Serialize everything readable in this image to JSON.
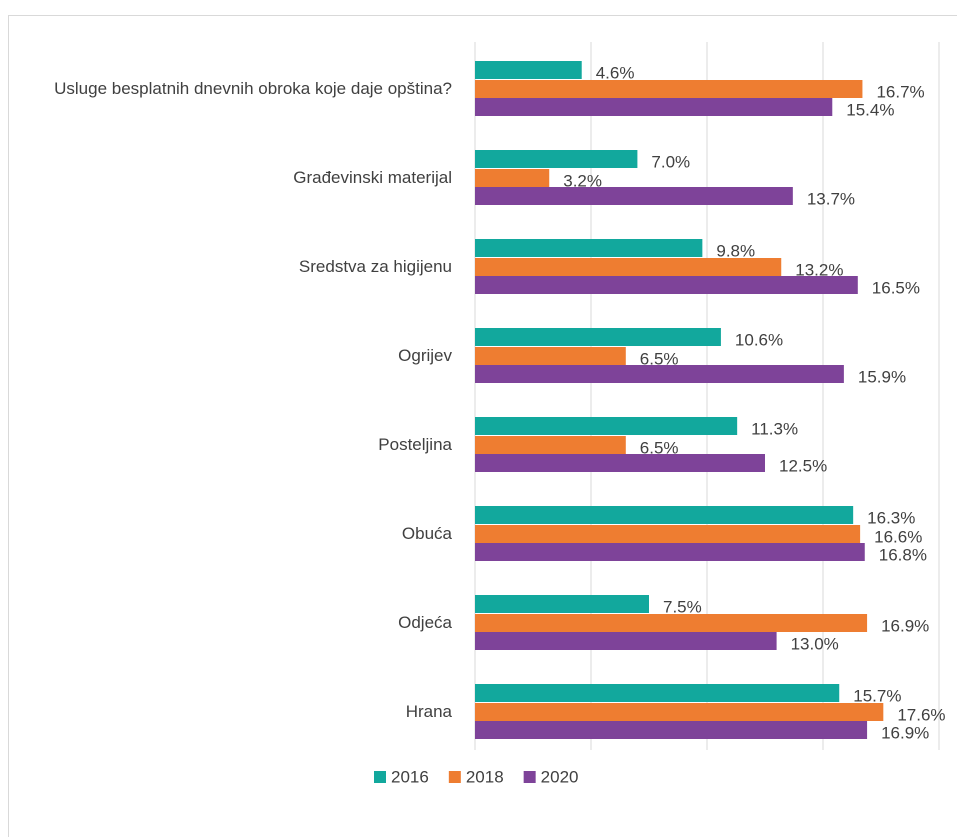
{
  "chart_data": {
    "type": "hbar",
    "categories": [
      "Usluge besplatnih dnevnih obroka koje daje opština?",
      "Građevinski materijal",
      "Sredstva za higijenu",
      "Ogrijev",
      "Posteljina",
      "Obuća",
      "Odjeća",
      "Hrana"
    ],
    "series": [
      {
        "name": "2016",
        "color": "#12a89d",
        "values": [
          4.6,
          7.0,
          9.8,
          10.6,
          11.3,
          16.3,
          7.5,
          15.7
        ],
        "value_labels": [
          "4.6%",
          "7.0%",
          "9.8%",
          "10.6%",
          "11.3%",
          "16.3%",
          "7.5%",
          "15.7%"
        ]
      },
      {
        "name": "2018",
        "color": "#ee7d31",
        "values": [
          16.7,
          3.2,
          13.2,
          6.5,
          6.5,
          16.6,
          16.9,
          17.6
        ],
        "value_labels": [
          "16.7%",
          "3.2%",
          "13.2%",
          "6.5%",
          "6.5%",
          "16.6%",
          "16.9%",
          "17.6%"
        ]
      },
      {
        "name": "2020",
        "color": "#7e4399",
        "values": [
          15.4,
          13.7,
          16.5,
          15.9,
          12.5,
          16.8,
          13.0,
          16.9
        ],
        "value_labels": [
          "15.4%",
          "13.7%",
          "16.5%",
          "15.9%",
          "12.5%",
          "16.8%",
          "13.0%",
          "16.9%"
        ]
      }
    ],
    "xlim": [
      0,
      20
    ],
    "xticks": [
      0,
      5,
      10,
      15,
      20
    ],
    "grid": true,
    "legend": "bottom"
  }
}
